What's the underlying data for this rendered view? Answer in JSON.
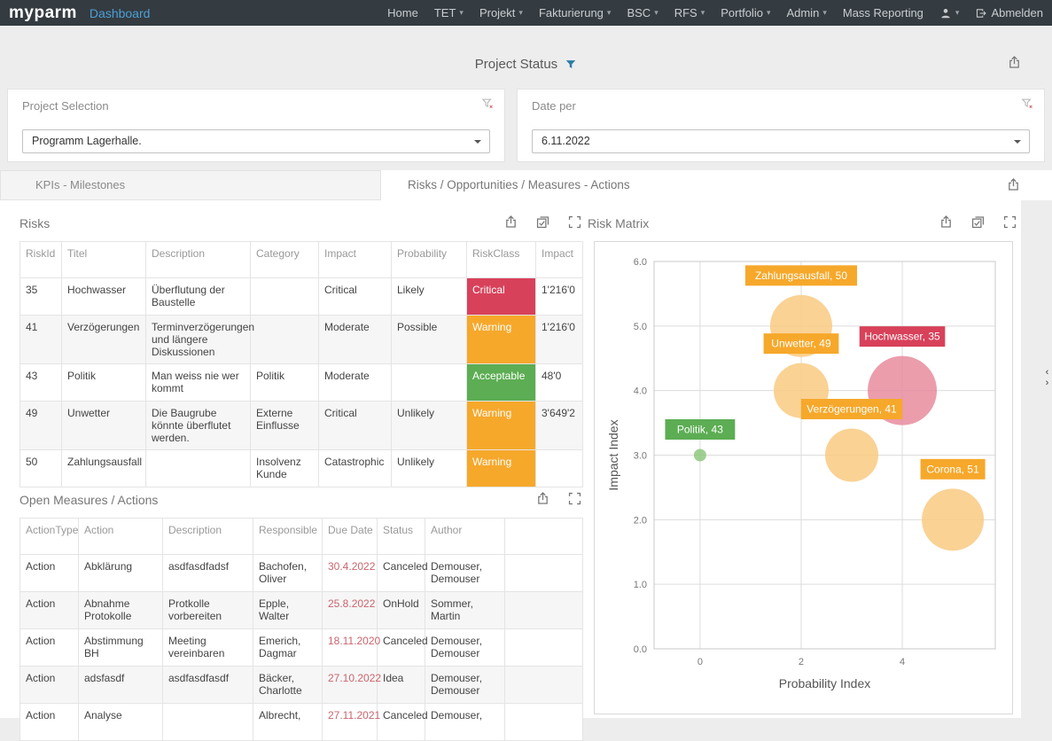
{
  "navbar": {
    "logo": "myparm",
    "app_name": "Dashboard",
    "items": [
      {
        "label": "Home",
        "caret": false
      },
      {
        "label": "TET",
        "caret": true
      },
      {
        "label": "Projekt",
        "caret": true
      },
      {
        "label": "Fakturierung",
        "caret": true
      },
      {
        "label": "BSC",
        "caret": true
      },
      {
        "label": "RFS",
        "caret": true
      },
      {
        "label": "Portfolio",
        "caret": true
      },
      {
        "label": "Admin",
        "caret": true
      },
      {
        "label": "Mass Reporting",
        "caret": false
      }
    ],
    "logout_label": "Abmelden"
  },
  "header": {
    "title": "Project Status"
  },
  "filters": {
    "project_selection": {
      "title": "Project Selection",
      "value": "Programm Lagerhalle."
    },
    "date_per": {
      "title": "Date per",
      "value": "6.11.2022"
    }
  },
  "tabs": {
    "inactive": "KPIs - Milestones",
    "active": "Risks / Opportunities / Measures - Actions"
  },
  "risks": {
    "title": "Risks",
    "table": {
      "columns": [
        {
          "label": "RiskId",
          "key": "riskId",
          "w": 47
        },
        {
          "label": "Titel",
          "key": "titel",
          "w": 95,
          "wrap": true
        },
        {
          "label": "Description",
          "key": "description",
          "w": 118,
          "wrap": true
        },
        {
          "label": "Category",
          "key": "category",
          "w": 77,
          "wrap": true
        },
        {
          "label": "Impact",
          "key": "impact",
          "w": 82
        },
        {
          "label": "Probability",
          "key": "probability",
          "w": 85
        },
        {
          "label": "RiskClass",
          "key": "riskClass",
          "w": 78,
          "badge": true
        },
        {
          "label": "Impact",
          "key": "impactValue",
          "w": 53
        }
      ],
      "rows": [
        {
          "riskId": "35",
          "titel": "Hochwasser",
          "description": "Überflutung der Baustelle",
          "category": "",
          "impact": "Critical",
          "probability": "Likely",
          "riskClass": "Critical",
          "impactValue": "1'216'0"
        },
        {
          "riskId": "41",
          "titel": "Verzögerungen",
          "description": "Terminverzögerungen und längere Diskussionen",
          "category": "",
          "impact": "Moderate",
          "probability": "Possible",
          "riskClass": "Warning",
          "impactValue": "1'216'0"
        },
        {
          "riskId": "43",
          "titel": "Politik",
          "description": "Man weiss nie wer kommt",
          "category": "Politik",
          "impact": "Moderate",
          "probability": "",
          "riskClass": "Acceptable",
          "impactValue": "48'0"
        },
        {
          "riskId": "49",
          "titel": "Unwetter",
          "description": "Die Baugrube könnte überflutet werden.",
          "category": "Externe Einflusse",
          "impact": "Critical",
          "probability": "Unlikely",
          "riskClass": "Warning",
          "impactValue": "3'649'2"
        },
        {
          "riskId": "50",
          "titel": "Zahlungsausfall",
          "description": "",
          "category": "Insolvenz Kunde",
          "impact": "Catastrophic",
          "probability": "Unlikely",
          "riskClass": "Warning",
          "impactValue": ""
        }
      ]
    }
  },
  "measures": {
    "title": "Open Measures / Actions",
    "table": {
      "columns": [
        {
          "label": "ActionType",
          "key": "actionType",
          "w": 66
        },
        {
          "label": "Action",
          "key": "action",
          "w": 95,
          "wrap": true
        },
        {
          "label": "Description",
          "key": "description",
          "w": 102,
          "wrap": true
        },
        {
          "label": "Responsible",
          "key": "responsible",
          "w": 78,
          "wrap": true
        },
        {
          "label": "Due Date",
          "key": "dueDate",
          "w": 62,
          "red": true
        },
        {
          "label": "Status",
          "key": "status",
          "w": 54
        },
        {
          "label": "Author",
          "key": "author",
          "w": 90,
          "wrap": true
        },
        {
          "label": "",
          "key": "_",
          "w": 88
        }
      ],
      "rows": [
        {
          "actionType": "Action",
          "action": "Abklärung",
          "description": "asdfasdfadsf",
          "responsible": "Bachofen, Oliver",
          "dueDate": "30.4.2022",
          "status": "Canceled",
          "author": "Demouser, Demouser"
        },
        {
          "actionType": "Action",
          "action": "Abnahme Protokolle",
          "description": "Protkolle vorbereiten",
          "responsible": "Epple, Walter",
          "dueDate": "25.8.2022",
          "status": "OnHold",
          "author": "Sommer, Martin"
        },
        {
          "actionType": "Action",
          "action": "Abstimmung BH",
          "description": "Meeting vereinbaren",
          "responsible": "Emerich, Dagmar",
          "dueDate": "18.11.2020",
          "status": "Canceled",
          "author": "Demouser, Demouser"
        },
        {
          "actionType": "Action",
          "action": "adsfasdf",
          "description": "asdfasdfasdf",
          "responsible": "Bäcker, Charlotte",
          "dueDate": "27.10.2022",
          "status": "Idea",
          "author": "Demouser, Demouser"
        },
        {
          "actionType": "Action",
          "action": "Analyse",
          "description": "",
          "responsible": "Albrecht,",
          "dueDate": "27.11.2021",
          "status": "Canceled",
          "author": "Demouser,"
        }
      ]
    }
  },
  "risk_matrix": {
    "title": "Risk Matrix"
  },
  "chart_data": {
    "type": "scatter",
    "title": "Risk Matrix",
    "xlabel": "Probability Index",
    "ylabel": "Impact Index",
    "xlim": [
      -0.91,
      5.84
    ],
    "ylim": [
      0,
      6
    ],
    "xticks": [
      0,
      2,
      4
    ],
    "yticks": [
      0,
      1,
      2,
      3,
      4,
      5,
      6
    ],
    "grid": true,
    "points": [
      {
        "label": "Zahlungsausfall, 50",
        "name": "Zahlungsausfall",
        "id": 50,
        "x": 2,
        "y": 5,
        "r": 35,
        "riskClass": "Warning"
      },
      {
        "label": "Unwetter, 49",
        "name": "Unwetter",
        "id": 49,
        "x": 2,
        "y": 4,
        "r": 31,
        "riskClass": "Warning"
      },
      {
        "label": "Verzögerungen, 41",
        "name": "Verzögerungen",
        "id": 41,
        "x": 3,
        "y": 3,
        "r": 30,
        "riskClass": "Warning"
      },
      {
        "label": "Corona, 51",
        "name": "Corona",
        "id": 51,
        "x": 5,
        "y": 2,
        "r": 35,
        "riskClass": "Warning"
      },
      {
        "label": "Politik, 43",
        "name": "Politik",
        "id": 43,
        "x": 0,
        "y": 3,
        "r": 7,
        "riskClass": "Acceptable"
      },
      {
        "label": "Hochwasser, 35",
        "name": "Hochwasser",
        "id": 35,
        "x": 4,
        "y": 4,
        "r": 39,
        "riskClass": "Critical"
      }
    ]
  },
  "colors": {
    "css": {
      "navbar-bg": "#343b41",
      "accent-blue": "#3e8fbf",
      "date-red": "#c9656e"
    },
    "badge": {
      "Critical": "#d8415a",
      "Warning": "#f6a82b",
      "Acceptable": "#5cad53"
    },
    "bubble": {
      "Critical": "#e88c9d",
      "Warning": "#f9ca81",
      "Acceptable": "#8ec87f"
    }
  }
}
